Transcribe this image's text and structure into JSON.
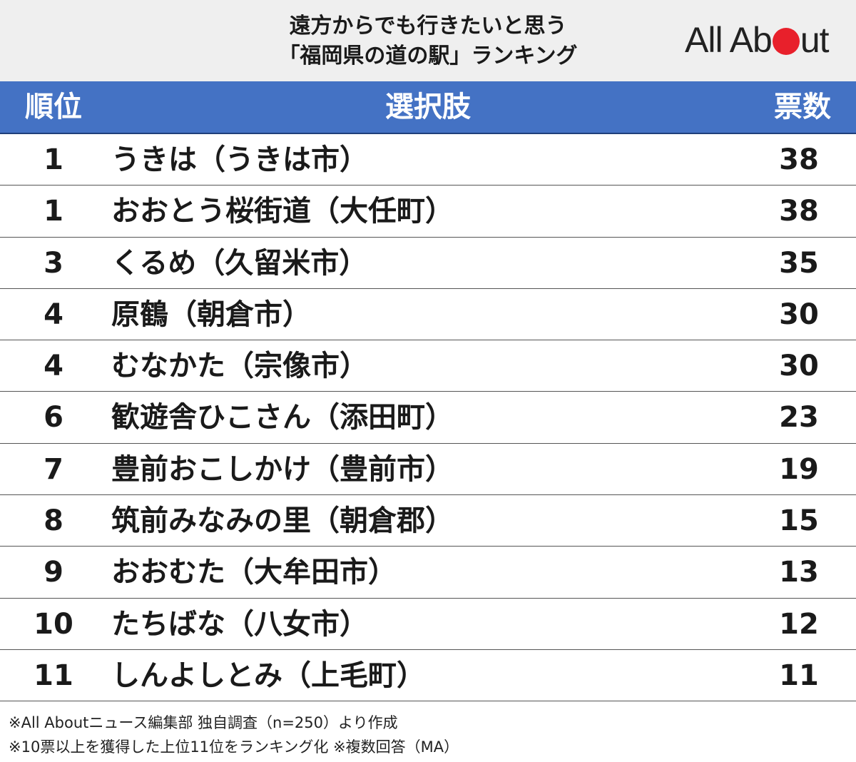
{
  "title": {
    "line1": "遠方からでも行きたいと思う",
    "line2": "「福岡県の道の駅」ランキング"
  },
  "logo": {
    "before": "All Ab",
    "after": "ut",
    "dot_color": "#e8202b"
  },
  "colors": {
    "header_bar": "#4472c4",
    "header_bg": "#efefef",
    "logo_dot": "#e8202b"
  },
  "headers": {
    "rank": "順位",
    "choice": "選択肢",
    "votes": "票数"
  },
  "chart_data": {
    "type": "table",
    "columns": [
      "順位",
      "選択肢",
      "票数"
    ],
    "rows": [
      {
        "rank": "1",
        "name": "うきは（うきは市）",
        "votes": "38"
      },
      {
        "rank": "1",
        "name": "おおとう桜街道（大任町）",
        "votes": "38"
      },
      {
        "rank": "3",
        "name": "くるめ（久留米市）",
        "votes": "35"
      },
      {
        "rank": "4",
        "name": "原鶴（朝倉市）",
        "votes": "30"
      },
      {
        "rank": "4",
        "name": "むなかた（宗像市）",
        "votes": "30"
      },
      {
        "rank": "6",
        "name": "歓遊舎ひこさん（添田町）",
        "votes": "23"
      },
      {
        "rank": "7",
        "name": "豊前おこしかけ（豊前市）",
        "votes": "19"
      },
      {
        "rank": "8",
        "name": "筑前みなみの里（朝倉郡）",
        "votes": "15"
      },
      {
        "rank": "9",
        "name": "おおむた（大牟田市）",
        "votes": "13"
      },
      {
        "rank": "10",
        "name": "たちばな（八女市）",
        "votes": "12"
      },
      {
        "rank": "11",
        "name": "しんよしとみ（上毛町）",
        "votes": "11"
      }
    ]
  },
  "footer": {
    "note1": "※All Aboutニュース編集部 独自調査（n=250）より作成",
    "note2": "※10票以上を獲得した上位11位をランキング化 ※複数回答（MA）"
  }
}
